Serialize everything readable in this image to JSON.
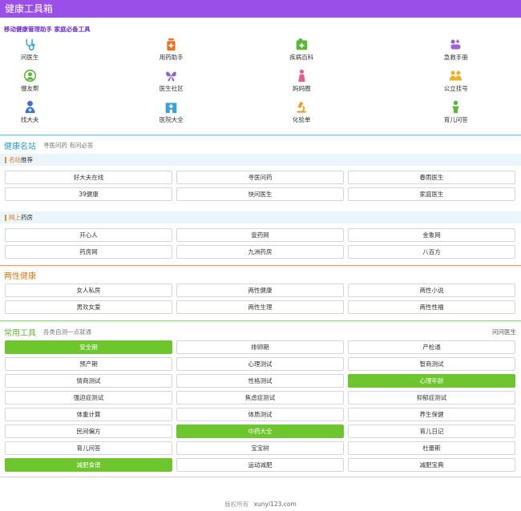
{
  "header": {
    "title": "健康工具箱"
  },
  "tagline": "移动健康管理助手 家庭必备工具",
  "icons": [
    {
      "label": "问医生",
      "icon": "stethoscope-icon",
      "color": "#3aa0d8"
    },
    {
      "label": "用药助手",
      "icon": "medicine-bottle-icon",
      "color": "#f07020"
    },
    {
      "label": "疾病百科",
      "icon": "book-medical-icon",
      "color": "#5cb83a"
    },
    {
      "label": "急救手册",
      "icon": "first-aid-icon",
      "color": "#a060d8"
    },
    {
      "label": "慢友帮",
      "icon": "person-circle-icon",
      "color": "#5cb83a"
    },
    {
      "label": "医生社区",
      "icon": "butterfly-icon",
      "color": "#9060d0"
    },
    {
      "label": "妈妈圈",
      "icon": "mother-icon",
      "color": "#e85a8a"
    },
    {
      "label": "公立挂号",
      "icon": "people-icon",
      "color": "#f0b020"
    },
    {
      "label": "找大夫",
      "icon": "doctor-icon",
      "color": "#3a70d8"
    },
    {
      "label": "医院大全",
      "icon": "hospital-icon",
      "color": "#3aa0d8"
    },
    {
      "label": "化验单",
      "icon": "microscope-icon",
      "color": "#f0a020"
    },
    {
      "label": "育儿问答",
      "icon": "child-icon",
      "color": "#5cb83a"
    }
  ],
  "sections": {
    "famous": {
      "title": "健康名站",
      "subtitle": "寻医问药 有问必答",
      "title_color": "#2a9ad8",
      "groups": [
        {
          "prefix": "名站",
          "suffix": "推荐",
          "items": [
            "好大夫在线",
            "寻医问药",
            "春雨医生",
            "39健康",
            "快问医生",
            "家庭医生"
          ]
        },
        {
          "prefix": "网上",
          "suffix": "药房",
          "items": [
            "开心人",
            "壹药网",
            "金象网",
            "药房网",
            "九洲药房",
            "八百方"
          ]
        }
      ]
    },
    "gender": {
      "title": "两性健康",
      "title_color": "#e07a16",
      "items": [
        "女人私房",
        "两性健康",
        "两性小说",
        "男欢女爱",
        "两性生理",
        "两性性福"
      ]
    },
    "tools": {
      "title": "常用工具",
      "subtitle": "各类自测一点就通",
      "right_link": "问问医生",
      "title_color": "#5cb83a",
      "items": [
        {
          "label": "安全期",
          "active": true
        },
        {
          "label": "排卵期",
          "active": false
        },
        {
          "label": "产检通",
          "active": false
        },
        {
          "label": "预产期",
          "active": false
        },
        {
          "label": "心理测试",
          "active": false
        },
        {
          "label": "智商测试",
          "active": false
        },
        {
          "label": "情商测试",
          "active": false
        },
        {
          "label": "性格测试",
          "active": false
        },
        {
          "label": "心理年龄",
          "active": true
        },
        {
          "label": "强迫症测试",
          "active": false
        },
        {
          "label": "焦虑症测试",
          "active": false
        },
        {
          "label": "抑郁症测试",
          "active": false
        },
        {
          "label": "体重计算",
          "active": false
        },
        {
          "label": "体质测试",
          "active": false
        },
        {
          "label": "养生保健",
          "active": false
        },
        {
          "label": "民间偏方",
          "active": false
        },
        {
          "label": "中药大全",
          "active": true
        },
        {
          "label": "育儿日记",
          "active": false
        },
        {
          "label": "育儿问答",
          "active": false
        },
        {
          "label": "宝宝树",
          "active": false
        },
        {
          "label": "杜蕾斯",
          "active": false
        },
        {
          "label": "减肥食谱",
          "active": true
        },
        {
          "label": "运动减肥",
          "active": false
        },
        {
          "label": "减肥宝典",
          "active": false
        }
      ]
    }
  },
  "footer": {
    "copyright": "版权所有",
    "site": "xunyi123.com"
  },
  "colors": {
    "header_bg": "#9a4fe8",
    "active_button": "#6dc62e",
    "accent_orange": "#f08a24"
  }
}
